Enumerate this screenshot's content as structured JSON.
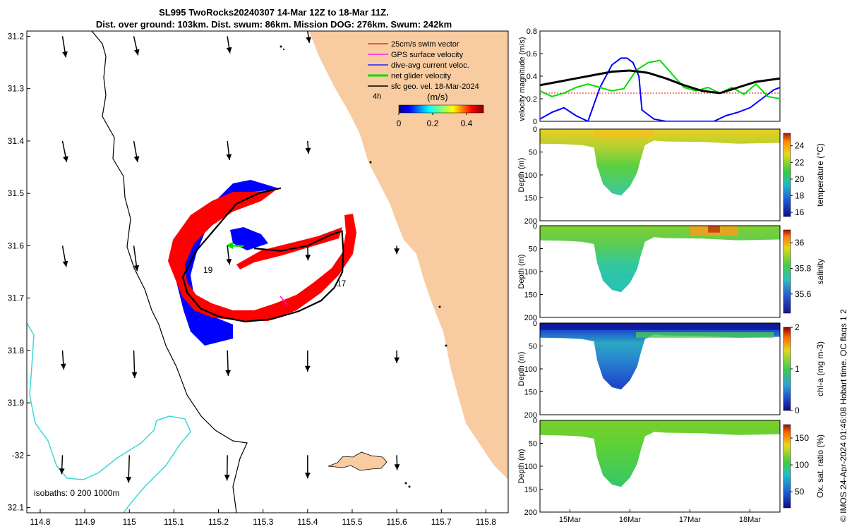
{
  "header": {
    "title_line1": "SL995 TwoRocks20240307 14-Mar 12Z to 18-Mar 11Z.",
    "title_line2": "Dist. over ground: 103km. Dist. swum: 86km. Mission DOG: 276km. Swum: 242km"
  },
  "footer": {
    "credit": "© IMOS 24-Apr-2024 01:46:08 Hobart time. QC flags 1  2"
  },
  "colors": {
    "land": "#f8cba0",
    "isobath_200": "#000000",
    "isobath_1000": "#3dd8d8",
    "swim_vector": "#ff0000",
    "gps_velocity": "#ff00ff",
    "current_velocity": "#0000ff",
    "net_velocity": "#00dd00",
    "geo_velocity": "#000000"
  },
  "chart_data": [
    {
      "type": "map",
      "name": "glider-track-map",
      "xlabel": "",
      "ylabel": "",
      "xlim": [
        114.77,
        115.85
      ],
      "ylim": [
        -32.11,
        -31.19
      ],
      "x_ticks": [
        114.8,
        114.9,
        115,
        115.1,
        115.2,
        115.3,
        115.4,
        115.5,
        115.6,
        115.7,
        115.8
      ],
      "x_tick_labels": [
        "114.8",
        "114.9",
        "115",
        "115.1",
        "115.2",
        "115.3",
        "115.4",
        "115.5",
        "115.6",
        "115.7",
        "115.8"
      ],
      "y_ticks": [
        -31.2,
        -31.3,
        -31.4,
        -31.5,
        -31.6,
        -31.7,
        -31.8,
        -31.9,
        -32,
        -32.1
      ],
      "y_tick_labels": [
        "31.2",
        "31.3",
        "31.4",
        "31.5",
        "31.6",
        "31.7",
        "31.8",
        "31.9",
        "-32",
        "32.1"
      ],
      "legend": {
        "position": "top-right",
        "entries": [
          "25cm/s swim vector",
          "GPS surface velocity",
          "dive-avg current veloc.",
          "net glider velocity",
          "sfc geo. vel. 18-Mar-2024"
        ],
        "scale_note": "4h"
      },
      "colorbar": {
        "label": "(m/s)",
        "ticks": [
          0,
          0.2,
          0.4
        ],
        "tick_labels": [
          "0",
          "0.2",
          "0.4"
        ],
        "range": [
          0,
          0.5
        ]
      },
      "isobath_label": "isobaths: 0   200  1000m",
      "track_labels": [
        {
          "text": "19",
          "lon": 115.175,
          "lat": -31.655
        },
        {
          "text": "17",
          "lon": 115.487,
          "lat": -31.682
        }
      ],
      "track": [
        [
          115.2,
          -31.575
        ],
        [
          115.24,
          -31.52
        ],
        [
          115.29,
          -31.5
        ],
        [
          115.34,
          -31.49
        ],
        [
          115.13,
          -31.63
        ],
        [
          115.12,
          -31.66
        ],
        [
          115.13,
          -31.69
        ],
        [
          115.16,
          -31.72
        ],
        [
          115.2,
          -31.735
        ],
        [
          115.26,
          -31.745
        ],
        [
          115.32,
          -31.74
        ],
        [
          115.38,
          -31.725
        ],
        [
          115.43,
          -31.705
        ],
        [
          115.46,
          -31.68
        ],
        [
          115.478,
          -31.65
        ],
        [
          115.48,
          -31.61
        ],
        [
          115.477,
          -31.572
        ],
        [
          115.45,
          -31.58
        ],
        [
          115.4,
          -31.6
        ],
        [
          115.34,
          -31.61
        ],
        [
          115.28,
          -31.605
        ]
      ],
      "geo_vectors": [
        {
          "lon": 114.85,
          "lat": -31.2,
          "u": 0.08,
          "v": -0.5
        },
        {
          "lon": 115.01,
          "lat": -31.2,
          "u": 0.1,
          "v": -0.45
        },
        {
          "lon": 115.22,
          "lat": -31.2,
          "u": 0.06,
          "v": -0.4
        },
        {
          "lon": 115.4,
          "lat": -31.19,
          "u": 0.04,
          "v": -0.28
        },
        {
          "lon": 114.85,
          "lat": -31.4,
          "u": 0.1,
          "v": -0.5
        },
        {
          "lon": 115.01,
          "lat": -31.4,
          "u": 0.09,
          "v": -0.5
        },
        {
          "lon": 115.22,
          "lat": -31.4,
          "u": 0.05,
          "v": -0.45
        },
        {
          "lon": 115.4,
          "lat": -31.4,
          "u": 0.02,
          "v": -0.3
        },
        {
          "lon": 114.85,
          "lat": -31.6,
          "u": 0.09,
          "v": -0.5
        },
        {
          "lon": 115.01,
          "lat": -31.6,
          "u": 0.08,
          "v": -0.6
        },
        {
          "lon": 115.22,
          "lat": -31.6,
          "u": 0.05,
          "v": -0.45
        },
        {
          "lon": 115.4,
          "lat": -31.6,
          "u": 0.01,
          "v": -0.35
        },
        {
          "lon": 115.6,
          "lat": -31.6,
          "u": 0.0,
          "v": -0.2
        },
        {
          "lon": 114.85,
          "lat": -31.8,
          "u": 0.03,
          "v": -0.45
        },
        {
          "lon": 115.01,
          "lat": -31.8,
          "u": 0.02,
          "v": -0.65
        },
        {
          "lon": 115.22,
          "lat": -31.8,
          "u": 0.02,
          "v": -0.6
        },
        {
          "lon": 115.4,
          "lat": -31.8,
          "u": 0.0,
          "v": -0.5
        },
        {
          "lon": 115.6,
          "lat": -31.8,
          "u": 0.0,
          "v": -0.3
        },
        {
          "lon": 114.85,
          "lat": -32.0,
          "u": -0.02,
          "v": -0.45
        },
        {
          "lon": 115.0,
          "lat": -32.0,
          "u": -0.02,
          "v": -0.65
        },
        {
          "lon": 115.22,
          "lat": -32.0,
          "u": -0.01,
          "v": -0.6
        },
        {
          "lon": 115.4,
          "lat": -32.0,
          "u": 0.0,
          "v": -0.55
        },
        {
          "lon": 115.6,
          "lat": -32.0,
          "u": 0.01,
          "v": -0.35
        }
      ]
    },
    {
      "type": "line",
      "name": "velocity-magnitude-panel",
      "xlabel": "",
      "ylabel": "velocity magnitude (m/s)",
      "xlim": [
        14.5,
        18.5
      ],
      "ylim": [
        0,
        0.8
      ],
      "y_ticks": [
        0,
        0.2,
        0.4,
        0.6,
        0.8
      ],
      "y_tick_labels": [
        "0",
        "0.2",
        "0.4",
        "0.6",
        "0.8"
      ],
      "series": [
        {
          "name": "25cm/s swim vector",
          "color": "#ff0000",
          "x": [
            14.5,
            18.5
          ],
          "y": [
            0.25,
            0.25
          ]
        },
        {
          "name": "dive-avg current veloc.",
          "color": "#0000ff",
          "x": [
            14.5,
            14.7,
            14.9,
            15.1,
            15.3,
            15.5,
            15.7,
            15.85,
            15.95,
            16.05,
            16.15,
            16.2,
            16.4,
            16.6,
            17.0,
            17.4,
            17.6,
            17.8,
            18.0,
            18.2,
            18.4,
            18.5
          ],
          "y": [
            0.02,
            0.08,
            0.12,
            0.05,
            0.0,
            0.3,
            0.5,
            0.56,
            0.56,
            0.52,
            0.4,
            0.1,
            0.02,
            0.0,
            0.0,
            0.0,
            0.05,
            0.08,
            0.12,
            0.2,
            0.28,
            0.3
          ]
        },
        {
          "name": "net glider velocity",
          "color": "#00dd00",
          "x": [
            14.5,
            14.7,
            14.9,
            15.1,
            15.3,
            15.5,
            15.7,
            15.9,
            16.1,
            16.3,
            16.5,
            16.7,
            16.9,
            17.1,
            17.3,
            17.5,
            17.7,
            17.9,
            18.1,
            18.3,
            18.5
          ],
          "y": [
            0.27,
            0.22,
            0.25,
            0.3,
            0.33,
            0.3,
            0.27,
            0.29,
            0.45,
            0.52,
            0.54,
            0.42,
            0.3,
            0.27,
            0.3,
            0.25,
            0.3,
            0.24,
            0.33,
            0.22,
            0.2
          ]
        },
        {
          "name": "sfc geo. vel. 18-Mar-2024",
          "color": "#000000",
          "x": [
            14.5,
            14.8,
            15.1,
            15.4,
            15.7,
            16.0,
            16.3,
            16.6,
            16.9,
            17.2,
            17.5,
            17.8,
            18.1,
            18.5
          ],
          "y": [
            0.32,
            0.35,
            0.38,
            0.41,
            0.44,
            0.45,
            0.43,
            0.38,
            0.32,
            0.27,
            0.25,
            0.3,
            0.35,
            0.38
          ]
        }
      ]
    },
    {
      "type": "heatmap",
      "name": "temperature-section",
      "ylabel": "Depth (m)",
      "ylim": [
        200,
        0
      ],
      "y_ticks": [
        0,
        50,
        100,
        150,
        200
      ],
      "y_tick_labels": [
        "0",
        "50",
        "100",
        "150",
        "200"
      ],
      "colorbar_label": "temperature (°C)",
      "colorbar_ticks": [
        16,
        18,
        20,
        22,
        24
      ],
      "colorbar_tick_labels": [
        "16",
        "18",
        "20",
        "22",
        "24"
      ],
      "colorbar_range": [
        15.5,
        25.5
      ],
      "layers": [
        {
          "depth": 0,
          "value": 23.5
        },
        {
          "depth": 30,
          "value": 22.0
        },
        {
          "depth": 80,
          "value": 20.0
        },
        {
          "depth": 145,
          "value": 19.0
        }
      ]
    },
    {
      "type": "heatmap",
      "name": "salinity-section",
      "ylabel": "Depth (m)",
      "ylim": [
        200,
        0
      ],
      "y_ticks": [
        0,
        50,
        100,
        150,
        200
      ],
      "y_tick_labels": [
        "0",
        "50",
        "100",
        "150",
        "200"
      ],
      "colorbar_label": "salinity",
      "colorbar_ticks": [
        35.6,
        35.8,
        36
      ],
      "colorbar_tick_labels": [
        "35.6",
        "35.8",
        "36"
      ],
      "colorbar_range": [
        35.45,
        36.1
      ],
      "layers": [
        {
          "depth": 0,
          "value": 35.92
        },
        {
          "depth": 40,
          "value": 35.85
        },
        {
          "depth": 90,
          "value": 35.78
        },
        {
          "depth": 145,
          "value": 35.74
        }
      ]
    },
    {
      "type": "heatmap",
      "name": "chlorophyll-section",
      "ylabel": "Depth (m)",
      "ylim": [
        200,
        0
      ],
      "y_ticks": [
        0,
        50,
        100,
        150,
        200
      ],
      "y_tick_labels": [
        "0",
        "50",
        "100",
        "150",
        "200"
      ],
      "colorbar_label": "chl-a (mg m-3)",
      "colorbar_ticks": [
        0,
        1,
        2
      ],
      "colorbar_tick_labels": [
        "0",
        "1",
        "2"
      ],
      "colorbar_range": [
        0,
        2
      ],
      "layers": [
        {
          "depth": 0,
          "value": 0.15
        },
        {
          "depth": 30,
          "value": 0.6
        },
        {
          "depth": 60,
          "value": 0.5
        },
        {
          "depth": 120,
          "value": 0.3
        }
      ]
    },
    {
      "type": "heatmap",
      "name": "oxygen-saturation-section",
      "xlabel": "",
      "ylabel": "Depth (m)",
      "ylim": [
        200,
        0
      ],
      "y_ticks": [
        0,
        50,
        100,
        150,
        200
      ],
      "y_tick_labels": [
        "0",
        "50",
        "100",
        "150",
        "200"
      ],
      "x_ticks": [
        15,
        16,
        17,
        18
      ],
      "x_tick_labels": [
        "15Mar",
        "16Mar",
        "17Mar",
        "18Mar"
      ],
      "colorbar_label": "Ox. sat. ratio (%)",
      "colorbar_ticks": [
        50,
        100,
        150
      ],
      "colorbar_tick_labels": [
        "50",
        "100",
        "150"
      ],
      "colorbar_range": [
        20,
        175
      ],
      "layers": [
        {
          "depth": 0,
          "value": 103
        },
        {
          "depth": 50,
          "value": 100
        },
        {
          "depth": 100,
          "value": 92
        },
        {
          "depth": 145,
          "value": 88
        }
      ]
    }
  ]
}
